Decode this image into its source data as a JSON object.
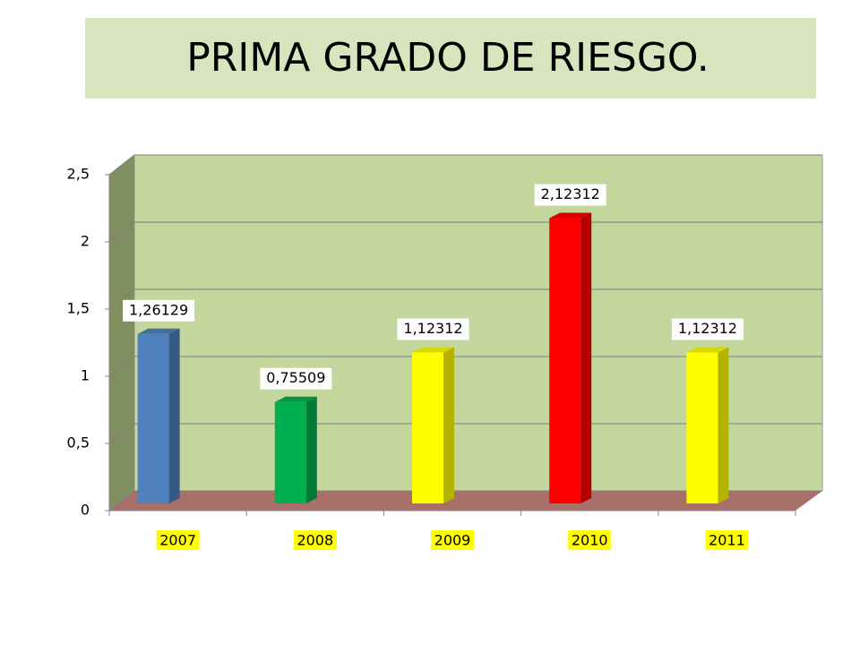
{
  "chart_data": {
    "type": "bar3d",
    "title": "PRIMA GRADO DE RIESGO.",
    "categories": [
      "2007",
      "2008",
      "2009",
      "2010",
      "2011"
    ],
    "values": [
      1.26129,
      0.75509,
      1.12312,
      2.12312,
      1.12312
    ],
    "value_labels": [
      "1,26129",
      "0,75509",
      "1,12312",
      "2,12312",
      "1,12312"
    ],
    "colors": [
      "#4f81bd",
      "#00b050",
      "#ffff00",
      "#ff0000",
      "#ffff00"
    ],
    "ylim": [
      0,
      2.5
    ],
    "yticks": [
      0,
      {
        "value": 0.5,
        "label": "0,5"
      },
      1,
      {
        "value": 1.5,
        "label": "1,5"
      },
      2,
      {
        "value": 2.5,
        "label": "2,5"
      }
    ],
    "grid": true
  }
}
